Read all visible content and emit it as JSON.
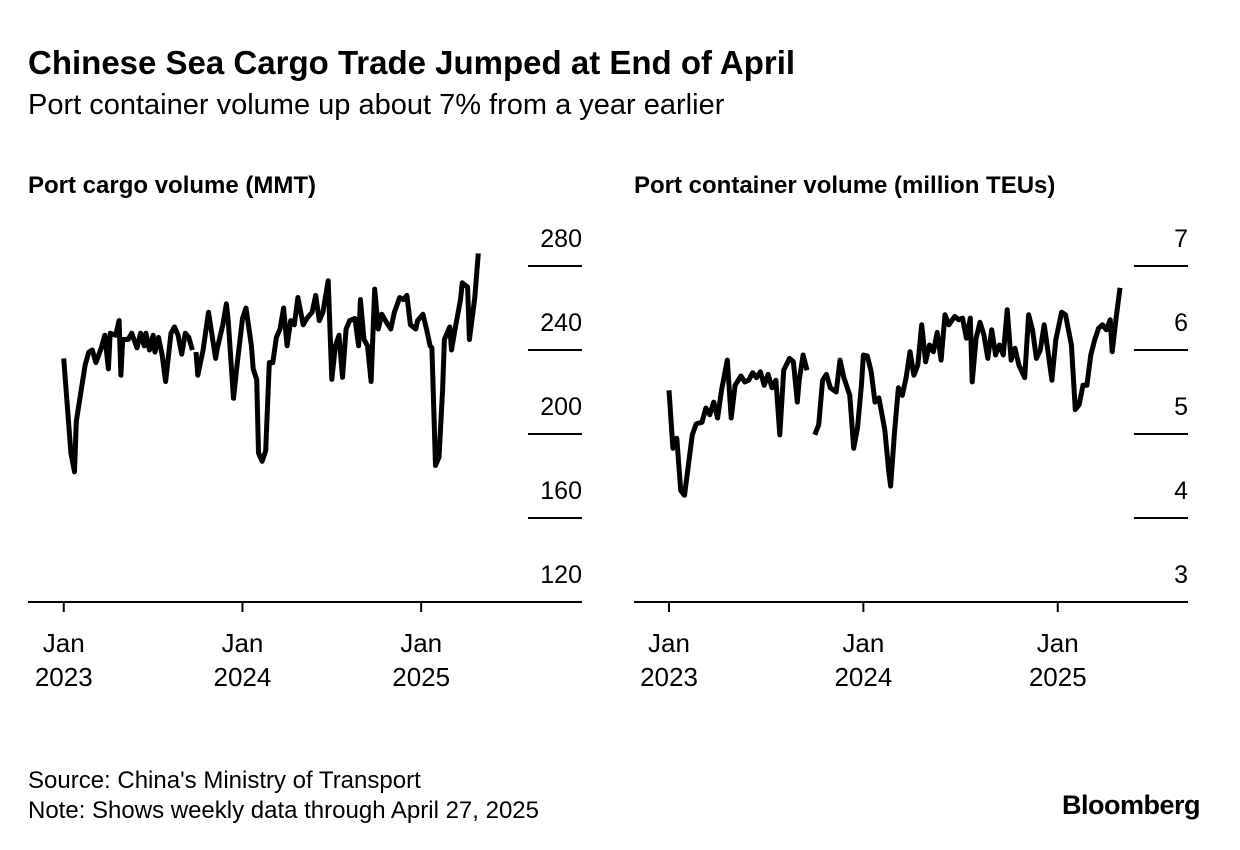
{
  "title": "Chinese Sea Cargo Trade Jumped at End of April",
  "subtitle": "Port container volume up about 7% from a year earlier",
  "source": "Source: China's Ministry of Transport",
  "note": "Note: Shows weekly data through April 27, 2025",
  "brand": "Bloomberg",
  "chart_data": [
    {
      "type": "line",
      "title": "Port cargo volume (MMT)",
      "x": [
        2023.0,
        2023.04,
        2023.06,
        2023.07,
        2023.12,
        2023.14,
        2023.16,
        2023.18,
        2023.21,
        2023.23,
        2023.25,
        2023.26,
        2023.29,
        2023.31,
        2023.32,
        2023.33,
        2023.36,
        2023.38,
        2023.41,
        2023.43,
        2023.45,
        2023.46,
        2023.48,
        2023.5,
        2023.51,
        2023.53,
        2023.55,
        2023.57,
        2023.6,
        2023.62,
        2023.64,
        2023.66,
        2023.68,
        2023.7,
        2023.72,
        2023.73,
        2023.74,
        2023.75,
        2023.78,
        2023.81,
        2023.85,
        2023.86,
        2023.89,
        2023.91,
        2023.92,
        2023.95,
        2023.97,
        2024.0,
        2024.02,
        2024.05,
        2024.06,
        2024.08,
        2024.09,
        2024.11,
        2024.13,
        2024.15,
        2024.17,
        2024.19,
        2024.21,
        2024.23,
        2024.25,
        2024.27,
        2024.29,
        2024.31,
        2024.34,
        2024.36,
        2024.39,
        2024.41,
        2024.43,
        2024.45,
        2024.48,
        2024.5,
        2024.52,
        2024.54,
        2024.56,
        2024.58,
        2024.6,
        2024.63,
        2024.65,
        2024.66,
        2024.68,
        2024.7,
        2024.72,
        2024.74,
        2024.76,
        2024.78,
        2024.8,
        2024.83,
        2024.85,
        2024.88,
        2024.9,
        2024.92,
        2024.94,
        2024.97,
        2024.98,
        2025.01,
        2025.03,
        2025.05,
        2025.06,
        2025.08,
        2025.1,
        2025.12,
        2025.13,
        2025.16,
        2025.17,
        2025.19,
        2025.22,
        2025.23,
        2025.26,
        2025.27,
        2025.3,
        2025.32
      ],
      "series": [
        {
          "color": "#000000",
          "values": [
            236,
            191,
            182,
            206,
            233,
            239,
            240,
            234,
            241,
            247,
            231,
            248,
            247,
            254,
            228,
            245,
            245,
            248,
            241,
            248,
            242,
            248,
            240,
            247,
            239,
            246,
            238,
            225,
            248,
            251,
            247,
            238,
            248,
            246,
            240,
            null,
            239,
            228,
            240,
            258,
            236,
            241,
            252,
            262,
            254,
            217,
            233,
            255,
            260,
            242,
            231,
            226,
            191,
            187,
            192,
            234,
            234,
            246,
            250,
            260,
            242,
            254,
            252,
            265,
            252,
            255,
            258,
            266,
            254,
            258,
            273,
            226,
            242,
            247,
            227,
            250,
            254,
            255,
            242,
            264,
            245,
            242,
            225,
            269,
            250,
            257,
            254,
            250,
            258,
            265,
            264,
            266,
            252,
            250,
            254,
            257,
            250,
            242,
            241,
            185,
            189,
            221,
            245,
            251,
            240,
            250,
            264,
            272,
            270,
            245,
            265,
            286
          ]
        }
      ],
      "xlim": [
        2022.8,
        2025.9
      ],
      "ylim": [
        120,
        300
      ],
      "xticks": [
        {
          "value": 2023,
          "label": "Jan 2023"
        },
        {
          "value": 2024,
          "label": "Jan 2024"
        },
        {
          "value": 2025,
          "label": "Jan 2025"
        }
      ],
      "yticks": [
        120,
        160,
        200,
        240,
        280
      ]
    },
    {
      "type": "line",
      "title": "Port container volume (million TEUs)",
      "x": [
        2023.0,
        2023.02,
        2023.04,
        2023.06,
        2023.08,
        2023.1,
        2023.12,
        2023.14,
        2023.17,
        2023.19,
        2023.21,
        2023.23,
        2023.25,
        2023.27,
        2023.3,
        2023.32,
        2023.34,
        2023.37,
        2023.39,
        2023.41,
        2023.43,
        2023.45,
        2023.47,
        2023.49,
        2023.51,
        2023.53,
        2023.55,
        2023.57,
        2023.59,
        2023.62,
        2023.64,
        2023.66,
        2023.67,
        2023.69,
        2023.71,
        2023.73,
        2023.75,
        2023.77,
        2023.79,
        2023.81,
        2023.83,
        2023.86,
        2023.88,
        2023.9,
        2023.93,
        2023.95,
        2023.97,
        2023.99,
        2024.0,
        2024.02,
        2024.04,
        2024.06,
        2024.08,
        2024.11,
        2024.13,
        2024.14,
        2024.16,
        2024.18,
        2024.2,
        2024.22,
        2024.24,
        2024.26,
        2024.28,
        2024.3,
        2024.32,
        2024.34,
        2024.36,
        2024.38,
        2024.4,
        2024.42,
        2024.44,
        2024.47,
        2024.49,
        2024.51,
        2024.53,
        2024.55,
        2024.56,
        2024.58,
        2024.6,
        2024.62,
        2024.64,
        2024.66,
        2024.68,
        2024.7,
        2024.72,
        2024.74,
        2024.76,
        2024.78,
        2024.8,
        2024.83,
        2024.85,
        2024.87,
        2024.89,
        2024.91,
        2024.93,
        2024.95,
        2024.97,
        2024.99,
        2025.02,
        2025.04,
        2025.07,
        2025.09,
        2025.11,
        2025.13,
        2025.15,
        2025.17,
        2025.19,
        2025.21,
        2025.23,
        2025.25,
        2025.27,
        2025.28,
        2025.3,
        2025.32
      ],
      "series": [
        {
          "color": "#000000",
          "values": [
            5.52,
            4.83,
            4.95,
            4.33,
            4.27,
            4.63,
            4.99,
            5.12,
            5.14,
            5.31,
            5.23,
            5.38,
            5.19,
            5.52,
            5.88,
            5.19,
            5.58,
            5.69,
            5.62,
            5.64,
            5.73,
            5.67,
            5.74,
            5.58,
            5.71,
            5.55,
            5.64,
            4.99,
            5.76,
            5.9,
            5.86,
            5.38,
            5.64,
            5.94,
            5.76,
            null,
            4.99,
            5.11,
            5.64,
            5.71,
            5.55,
            5.5,
            5.88,
            5.67,
            5.46,
            4.83,
            5.07,
            5.58,
            5.94,
            5.93,
            5.74,
            5.38,
            5.43,
            5.05,
            4.57,
            4.38,
            5.02,
            5.55,
            5.46,
            5.67,
            5.98,
            5.7,
            5.82,
            6.3,
            5.86,
            6.06,
            5.98,
            6.21,
            5.88,
            6.42,
            6.3,
            6.4,
            6.36,
            6.38,
            6.14,
            6.38,
            5.62,
            6.14,
            6.33,
            6.18,
            5.9,
            6.24,
            5.94,
            6.06,
            5.94,
            6.48,
            5.88,
            6.02,
            5.82,
            5.67,
            6.42,
            6.24,
            5.9,
            6.0,
            6.3,
            5.98,
            5.64,
            6.12,
            6.45,
            6.42,
            6.06,
            5.29,
            5.35,
            5.58,
            5.58,
            5.94,
            6.12,
            6.26,
            6.3,
            6.24,
            6.36,
            5.98,
            6.38,
            6.74
          ]
        }
      ],
      "xlim": [
        2022.82,
        2025.67
      ],
      "ylim": [
        3,
        7.5
      ],
      "xticks": [
        {
          "value": 2023,
          "label": "Jan 2023"
        },
        {
          "value": 2024,
          "label": "Jan 2024"
        },
        {
          "value": 2025,
          "label": "Jan 2025"
        }
      ],
      "yticks": [
        3,
        4,
        5,
        6,
        7
      ]
    }
  ]
}
